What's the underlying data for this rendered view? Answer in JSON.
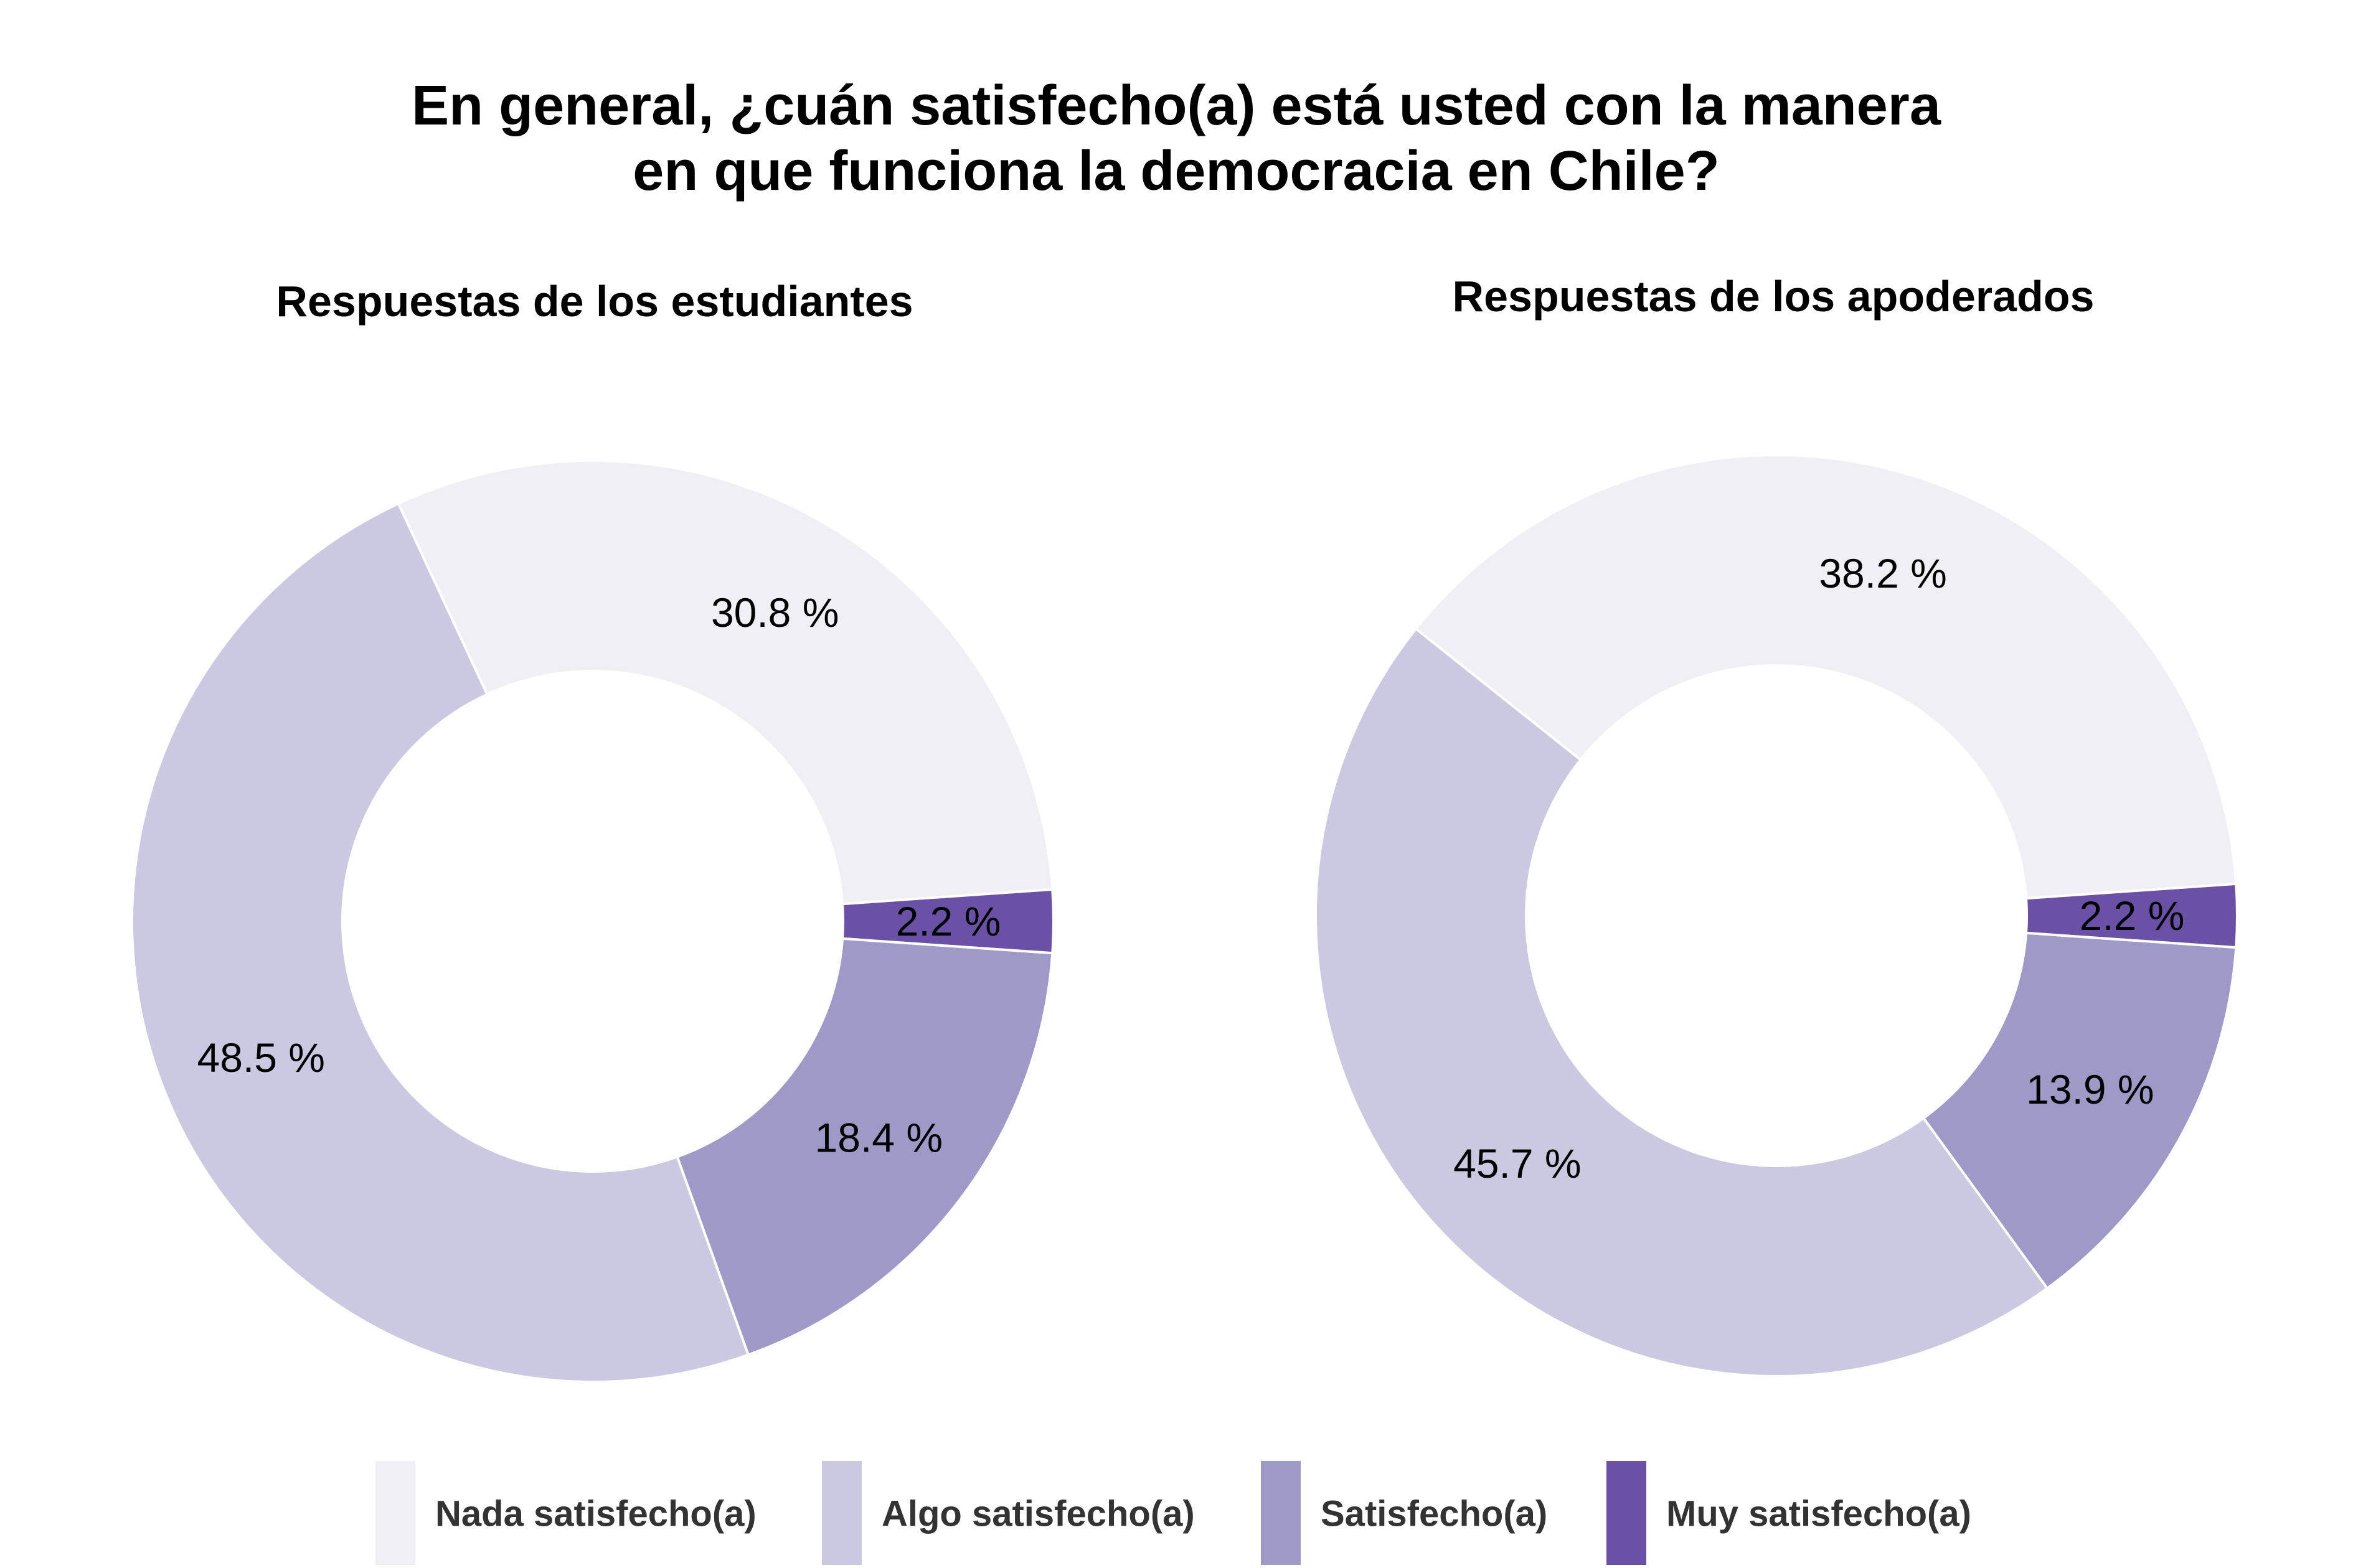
{
  "title": {
    "line1": "En general, ¿cuán satisfecho(a) está usted con la manera",
    "line2": "en que funciona la democracia en Chile?"
  },
  "colors": {
    "nada": "#F0EFF6",
    "algo": "#CBC8E1",
    "satisfecho": "#9E9AC8",
    "muy": "#6B51A6",
    "separator": "#FFFFFF"
  },
  "legend": [
    {
      "label": "Nada satisfecho(a)",
      "color": "#F0EFF6"
    },
    {
      "label": "Algo satisfecho(a)",
      "color": "#CBC8E1"
    },
    {
      "label": "Satisfecho(a)",
      "color": "#9E9AC8"
    },
    {
      "label": "Muy satisfecho(a)",
      "color": "#6B51A6"
    }
  ],
  "chart_data": [
    {
      "type": "pie",
      "title": "Respuestas de los estudiantes",
      "categories": [
        "Nada satisfecho(a)",
        "Algo satisfecho(a)",
        "Satisfecho(a)",
        "Muy satisfecho(a)"
      ],
      "values": [
        30.8,
        48.5,
        18.4,
        2.2
      ],
      "labels": [
        "30.8 %",
        "48.5 %",
        "18.4 %",
        "2.2 %"
      ]
    },
    {
      "type": "pie",
      "title": "Respuestas de los apoderados",
      "categories": [
        "Nada satisfecho(a)",
        "Algo satisfecho(a)",
        "Satisfecho(a)",
        "Muy satisfecho(a)"
      ],
      "values": [
        38.2,
        45.7,
        13.9,
        2.2
      ],
      "labels": [
        "38.2 %",
        "45.7 %",
        "13.9 %",
        "2.2 %"
      ]
    }
  ]
}
